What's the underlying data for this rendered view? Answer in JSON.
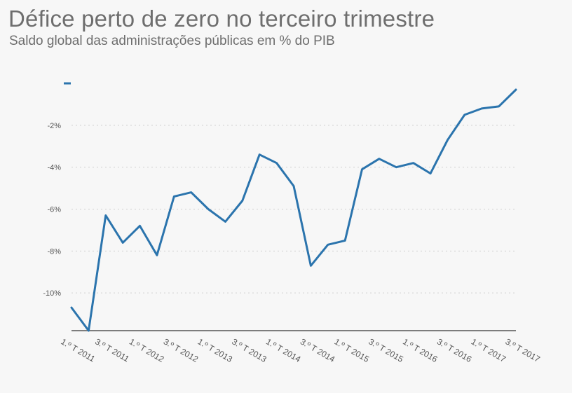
{
  "header": {
    "title": "Défice perto de zero no terceiro trimestre",
    "subtitle": "Saldo global das administrações públicas em % do PIB"
  },
  "colors": {
    "line": "#2b74ad",
    "text": "#6e6e6e"
  },
  "chart_data": {
    "type": "line",
    "title": "Défice perto de zero no terceiro trimestre",
    "subtitle": "Saldo global das administrações públicas em % do PIB",
    "xlabel": "",
    "ylabel": "",
    "ylim": [
      -11.8,
      0
    ],
    "grid": true,
    "legend": "none",
    "yticks": [
      {
        "value": 0,
        "label": "-"
      },
      {
        "value": -2,
        "label": "-2%"
      },
      {
        "value": -4,
        "label": "-4%"
      },
      {
        "value": -6,
        "label": "-6%"
      },
      {
        "value": -8,
        "label": "-8%"
      },
      {
        "value": -10,
        "label": "-10%"
      }
    ],
    "xtick_labels": [
      "1.º T 2011",
      "3.º T 2011",
      "1.º T 2012",
      "3.º T 2012",
      "1.º T 2013",
      "3.º T 2013",
      "1.º T 2014",
      "3.º T 2014",
      "1.º T 2015",
      "3.º T 2015",
      "1.º T 2016",
      "3.º T 2016",
      "1.º T 2017",
      "3.º T 2017"
    ],
    "x": [
      "1T2011",
      "2T2011",
      "3T2011",
      "4T2011",
      "1T2012",
      "2T2012",
      "3T2012",
      "4T2012",
      "1T2013",
      "2T2013",
      "3T2013",
      "4T2013",
      "1T2014",
      "2T2014",
      "3T2014",
      "4T2014",
      "1T2015",
      "2T2015",
      "3T2015",
      "4T2015",
      "1T2016",
      "2T2016",
      "3T2016",
      "4T2016",
      "1T2017",
      "2T2017",
      "3T2017"
    ],
    "series": [
      {
        "values": [
          -10.7,
          -11.8,
          -6.3,
          -7.6,
          -6.8,
          -8.2,
          -5.4,
          -5.2,
          -6.0,
          -6.6,
          -5.6,
          -3.4,
          -3.8,
          -4.9,
          -8.7,
          -7.7,
          -7.5,
          -4.1,
          -3.6,
          -4.0,
          -3.8,
          -4.3,
          -2.7,
          -1.5,
          -1.2,
          -1.1,
          -0.3
        ]
      }
    ]
  }
}
